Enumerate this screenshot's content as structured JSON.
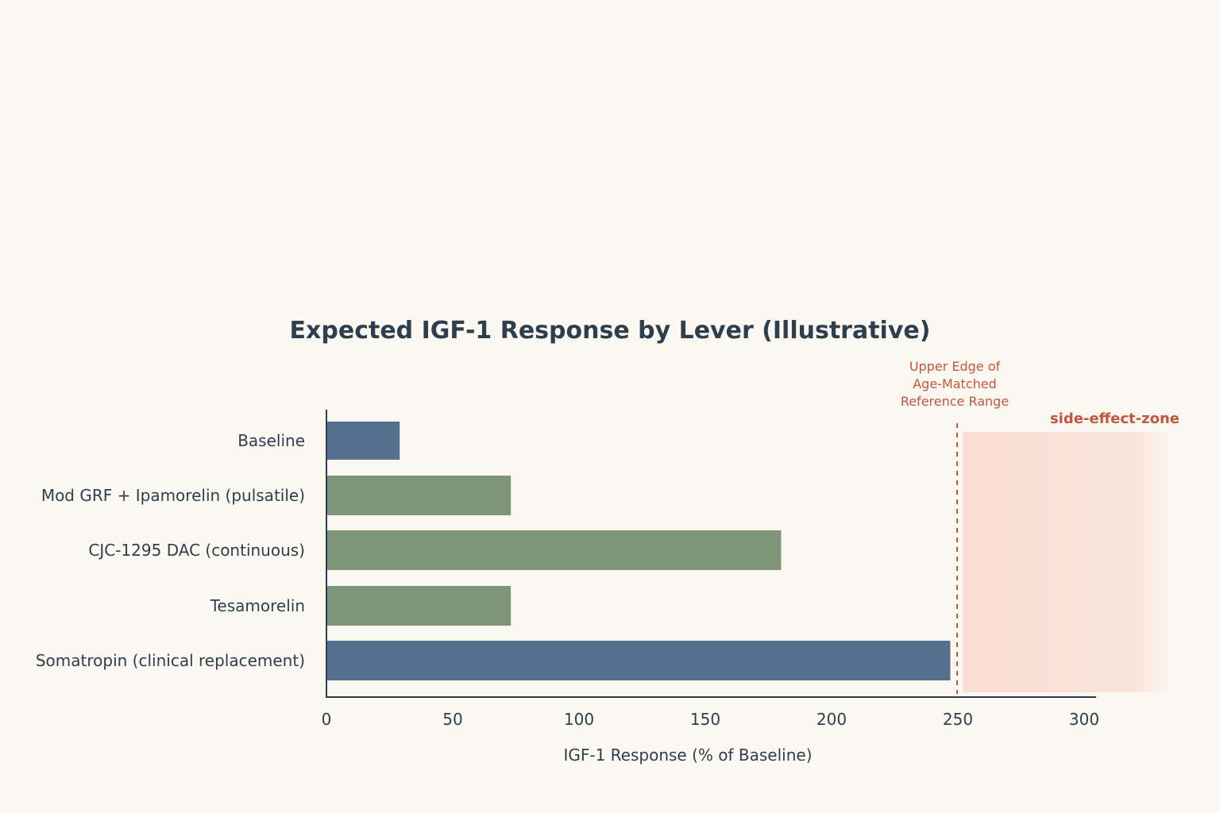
{
  "chart_data": {
    "type": "bar",
    "orientation": "horizontal",
    "title": "Expected IGF-1 Response by Lever (Illustrative)",
    "xlabel": "IGF-1 Response (% of Baseline)",
    "ylabel": "",
    "xlim": [
      0,
      305
    ],
    "xticks": [
      0,
      50,
      100,
      150,
      200,
      250,
      300
    ],
    "grid": false,
    "categories": [
      "Baseline",
      "Mod GRF + Ipamorelin (pulsatile)",
      "CJC-1295 DAC (continuous)",
      "Tesamorelin",
      "Somatropin (clinical replacement)"
    ],
    "values": [
      29,
      73,
      180,
      73,
      247
    ],
    "bar_colors": [
      "#55708f",
      "#7d9677",
      "#7d9677",
      "#7d9677",
      "#55708f"
    ],
    "reference_line": {
      "value": 250,
      "label_lines": [
        "Upper Edge of",
        "Age-Matched",
        "Reference Range"
      ],
      "color": "#c2573f"
    },
    "zone": {
      "from": 252,
      "to": 335,
      "label": "side-effect-zone",
      "color": "#f7c9bd"
    }
  }
}
